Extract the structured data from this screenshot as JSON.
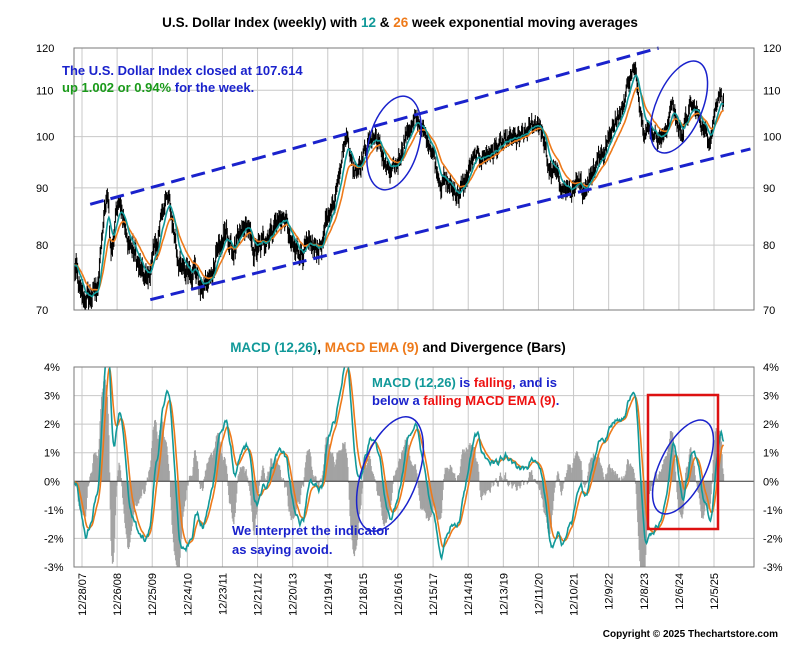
{
  "copyright": "Copyright © 2025 Thechartstore.com",
  "colors": {
    "price": "#000000",
    "ema12": "#119999",
    "ema26": "#ee7a1a",
    "trend": "#1a22cc",
    "ellipse": "#1a22cc",
    "box": "#dd1111",
    "bars": "#a3a3a3",
    "green_text": "#1a9a1a",
    "red_text": "#ee1111",
    "grid": "#c8c8c8"
  },
  "top": {
    "title": {
      "part1": "U.S. Dollar Index (weekly) with ",
      "n12": "12",
      "amp": " & ",
      "n26": "26",
      "part2": " week exponential moving averages"
    },
    "note_line1": "The U.S. Dollar Index closed at 107.614",
    "note_line2_green": "up 1.002 or 0.94%",
    "note_line2_blue": " for the week."
  },
  "bottom": {
    "title": {
      "part1": "MACD (12,26)",
      "sep": ", ",
      "part2": "MACD EMA (9)",
      "part3": " and Divergence (Bars)"
    },
    "note1": {
      "a": "MACD (12,26)",
      "b": " is ",
      "c": "falling",
      "d": ", and is"
    },
    "note2": {
      "a": "below a ",
      "b": "falling",
      "c": " MACD EMA (9)",
      "d": "."
    },
    "note3_line1": "We interpret the indicator",
    "note3_line2": "as saying avoid."
  },
  "chart_data": [
    {
      "type": "line",
      "title": "U.S. Dollar Index (weekly) with 12 & 26 week exponential moving averages",
      "y_scale": "log",
      "ylim": [
        70,
        120
      ],
      "yticks": [
        "120",
        "110",
        "100",
        "90",
        "80",
        "70"
      ],
      "x_ticks": [
        "12/28/07",
        "12/26/08",
        "12/25/09",
        "12/24/10",
        "12/23/11",
        "12/21/12",
        "12/20/13",
        "12/19/14",
        "12/18/15",
        "12/16/16",
        "12/15/17",
        "12/14/18",
        "12/13/19",
        "12/11/20",
        "12/10/21",
        "12/9/22",
        "12/8/23",
        "12/6/24",
        "12/5/25"
      ],
      "x_range": [
        "2007-12-28",
        "2025-12-05"
      ],
      "grid": true,
      "series_names": [
        "U.S. Dollar Index",
        "12 week EMA",
        "26 week EMA"
      ],
      "price_points": [
        [
          "2007-12-28",
          76.5
        ],
        [
          "2008-03-14",
          72.0
        ],
        [
          "2008-04-25",
          71.3
        ],
        [
          "2008-07-18",
          72.5
        ],
        [
          "2008-11-21",
          88.0
        ],
        [
          "2008-12-19",
          79.0
        ],
        [
          "2009-03-06",
          88.5
        ],
        [
          "2009-06-05",
          80.0
        ],
        [
          "2009-11-27",
          74.5
        ],
        [
          "2010-03-05",
          80.5
        ],
        [
          "2010-06-04",
          88.0
        ],
        [
          "2010-11-05",
          76.0
        ],
        [
          "2011-03-04",
          76.5
        ],
        [
          "2011-05-06",
          73.0
        ],
        [
          "2011-08-05",
          74.5
        ],
        [
          "2011-10-07",
          79.5
        ],
        [
          "2012-01-13",
          81.5
        ],
        [
          "2012-03-02",
          79.0
        ],
        [
          "2012-07-27",
          83.5
        ],
        [
          "2012-09-14",
          79.0
        ],
        [
          "2013-07-05",
          84.5
        ],
        [
          "2013-10-25",
          79.0
        ],
        [
          "2014-05-02",
          79.5
        ],
        [
          "2014-07-04",
          80.0
        ],
        [
          "2014-10-03",
          86.0
        ],
        [
          "2015-03-13",
          100.0
        ],
        [
          "2015-05-15",
          93.5
        ],
        [
          "2015-11-27",
          100.0
        ],
        [
          "2016-05-06",
          92.5
        ],
        [
          "2016-11-25",
          102.0
        ],
        [
          "2017-01-06",
          103.5
        ],
        [
          "2017-05-05",
          99.0
        ],
        [
          "2017-09-08",
          91.3
        ],
        [
          "2018-02-16",
          89.0
        ],
        [
          "2018-08-17",
          96.0
        ],
        [
          "2019-09-27",
          99.5
        ],
        [
          "2020-03-20",
          103.0
        ],
        [
          "2020-07-31",
          93.0
        ],
        [
          "2021-01-08",
          89.5
        ],
        [
          "2021-05-28",
          90.0
        ],
        [
          "2021-11-26",
          96.5
        ],
        [
          "2022-05-13",
          104.5
        ],
        [
          "2022-09-30",
          114.8
        ],
        [
          "2023-01-20",
          102.0
        ],
        [
          "2023-07-14",
          99.8
        ],
        [
          "2023-10-06",
          106.5
        ],
        [
          "2023-12-29",
          101.0
        ],
        [
          "2024-04-19",
          106.3
        ],
        [
          "2024-09-27",
          100.2
        ],
        [
          "2025-01-10",
          109.5
        ],
        [
          "2025-02-14",
          107.6
        ]
      ],
      "trend_upper": [
        [
          "2008-06-01",
          87.0
        ],
        [
          "2023-06-01",
          120.0
        ]
      ],
      "trend_lower": [
        [
          "2010-01-01",
          71.5
        ],
        [
          "2025-11-01",
          97.5
        ]
      ]
    },
    {
      "type": "line",
      "title": "MACD (12,26), MACD EMA (9) and Divergence (Bars)",
      "ylim": [
        -3,
        4
      ],
      "yticks": [
        "4%",
        "3%",
        "2%",
        "1%",
        "0%",
        "-1%",
        "-2%",
        "-3%"
      ],
      "x_range": [
        "2007-12-28",
        "2025-12-05"
      ],
      "grid": true,
      "series_names": [
        "MACD (12,26)",
        "MACD EMA (9)",
        "Divergence"
      ]
    }
  ]
}
